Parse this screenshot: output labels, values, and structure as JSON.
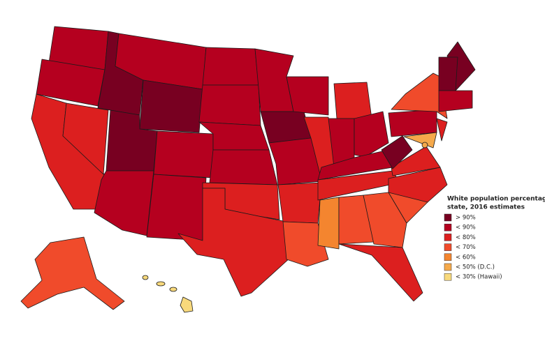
{
  "legend": {
    "title_lines": [
      "White population percentage by",
      "state, 2016 estimates"
    ],
    "items": [
      {
        "label": "> 90%",
        "color": "#780021"
      },
      {
        "label": "< 90%",
        "color": "#b5001f"
      },
      {
        "label": "< 80%",
        "color": "#dc1f1f"
      },
      {
        "label": "< 70%",
        "color": "#f04b2b"
      },
      {
        "label": "< 60%",
        "color": "#f4852f"
      },
      {
        "label": "< 50% (D.C.)",
        "color": "#f5a94b"
      },
      {
        "label": "< 30% (Hawaii)",
        "color": "#f8d97c"
      }
    ]
  }
}
